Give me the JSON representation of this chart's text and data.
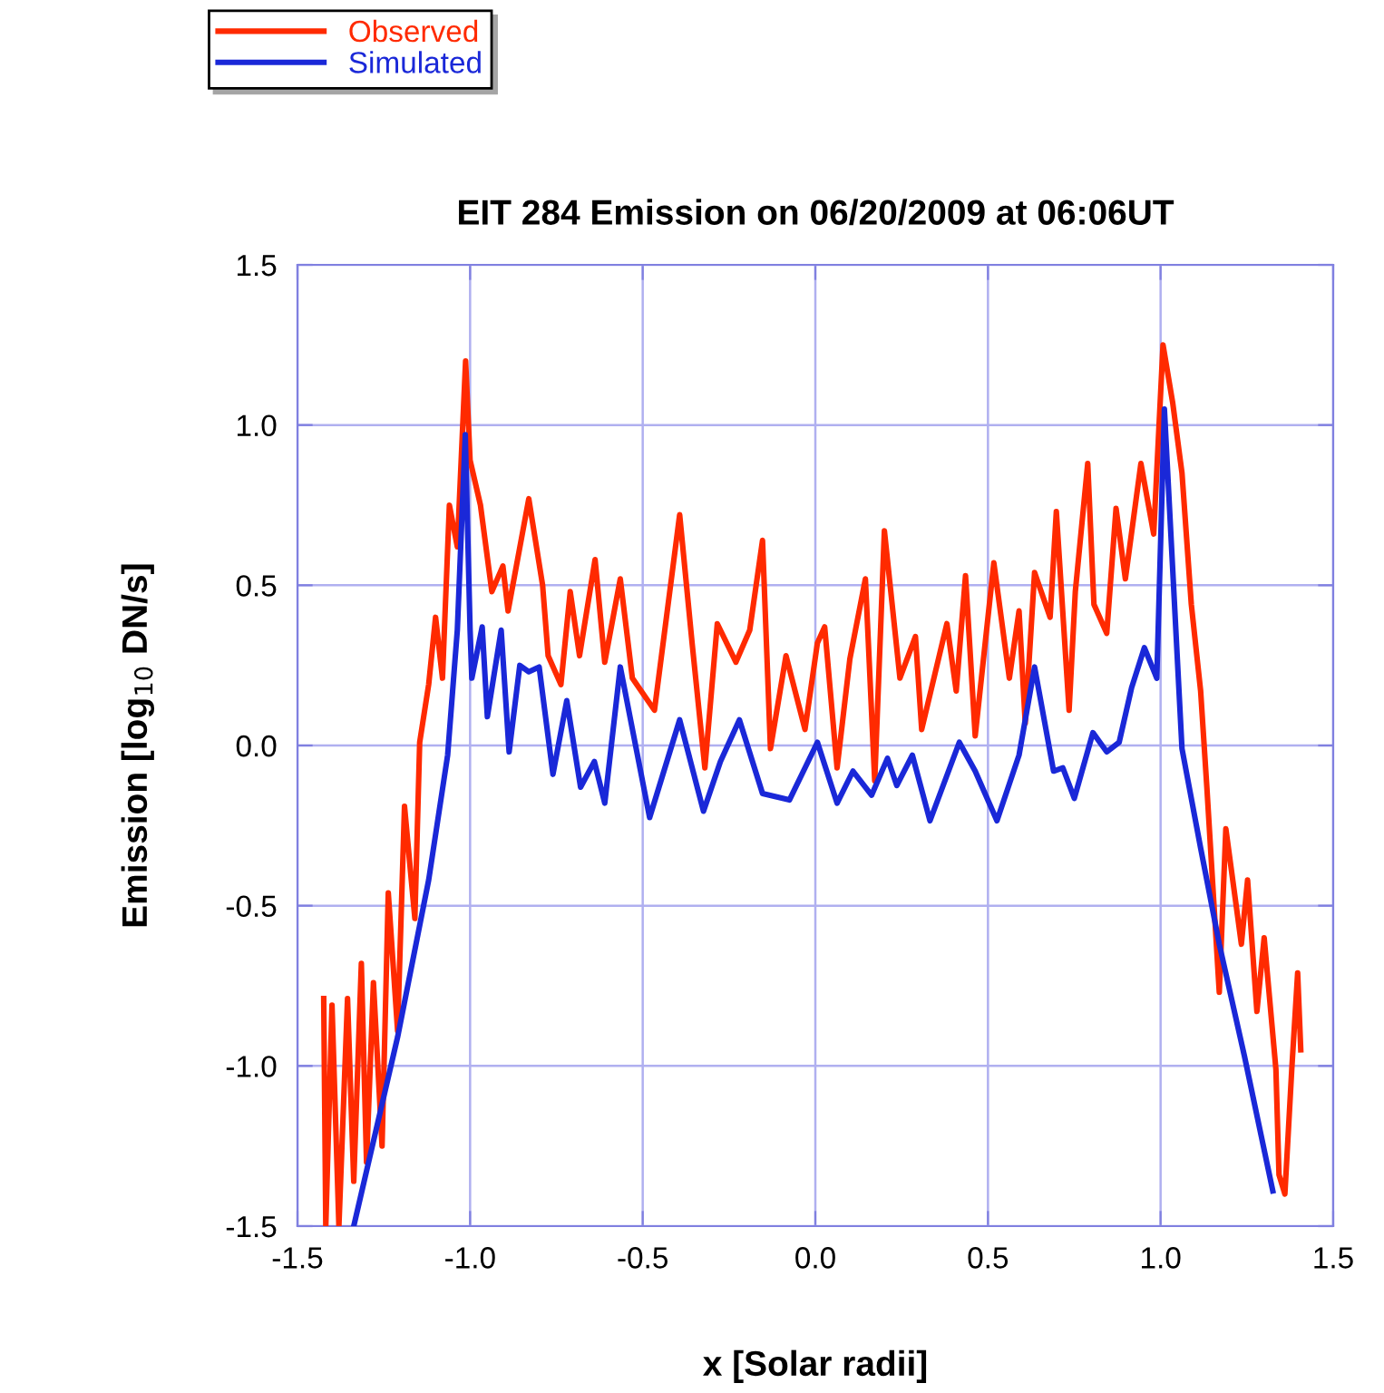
{
  "chart_data": {
    "type": "line",
    "title": "EIT 284 Emission on 06/20/2009 at 06:06UT",
    "xlabel": "x [Solar radii]",
    "ylabel": "Emission [log$_{10}$ DN/s]",
    "xlim": [
      -1.5,
      1.5
    ],
    "ylim": [
      -1.5,
      1.5
    ],
    "xticks": [
      -1.5,
      {
        "value": -1,
        "label": "-1.0"
      },
      -0.5,
      {
        "value": 0,
        "label": "0.0"
      },
      0.5,
      {
        "value": 1,
        "label": "1.0"
      },
      1.5
    ],
    "yticks": [
      -1.5,
      {
        "value": -1,
        "label": "-1.0"
      },
      -0.5,
      {
        "value": 0,
        "label": "0.0"
      },
      0.5,
      {
        "value": 1,
        "label": "1.0"
      },
      1.5
    ],
    "grid": true,
    "legend": "top left",
    "marker": "none",
    "line_style": "solid",
    "series": [
      {
        "name": "Observed",
        "color": "#ff2a00",
        "x": [
          -1.424,
          -1.418,
          -1.4,
          -1.38,
          -1.355,
          -1.337,
          -1.315,
          -1.3,
          -1.28,
          -1.255,
          -1.237,
          -1.21,
          -1.19,
          -1.16,
          -1.146,
          -1.12,
          -1.1,
          -1.08,
          -1.06,
          -1.037,
          -1.013,
          -1.0,
          -0.97,
          -0.937,
          -0.905,
          -0.89,
          -0.83,
          -0.79,
          -0.774,
          -0.737,
          -0.71,
          -0.683,
          -0.638,
          -0.61,
          -0.565,
          -0.53,
          -0.466,
          -0.393,
          -0.357,
          -0.32,
          -0.284,
          -0.23,
          -0.19,
          -0.153,
          -0.13,
          -0.085,
          -0.03,
          0.006,
          0.027,
          0.063,
          0.1,
          0.145,
          0.172,
          0.2,
          0.245,
          0.29,
          0.308,
          0.381,
          0.408,
          0.435,
          0.463,
          0.517,
          0.562,
          0.59,
          0.608,
          0.635,
          0.68,
          0.698,
          0.735,
          0.753,
          0.789,
          0.807,
          0.844,
          0.871,
          0.898,
          0.943,
          0.98,
          1.007,
          1.035,
          1.062,
          1.089,
          1.116,
          1.134,
          1.17,
          1.189,
          1.234,
          1.252,
          1.279,
          1.3,
          1.334,
          1.343,
          1.36,
          1.38,
          1.397,
          1.406
        ],
        "values": [
          -0.79,
          -1.5,
          -0.81,
          -1.5,
          -0.79,
          -1.36,
          -0.68,
          -1.3,
          -0.74,
          -1.25,
          -0.46,
          -0.89,
          -0.19,
          -0.54,
          0.01,
          0.19,
          0.4,
          0.21,
          0.75,
          0.62,
          1.2,
          0.89,
          0.75,
          0.48,
          0.56,
          0.42,
          0.77,
          0.5,
          0.28,
          0.19,
          0.48,
          0.28,
          0.58,
          0.26,
          0.52,
          0.21,
          0.11,
          0.72,
          0.32,
          -0.07,
          0.38,
          0.26,
          0.36,
          0.64,
          -0.01,
          0.28,
          0.05,
          0.32,
          0.37,
          -0.07,
          0.27,
          0.52,
          -0.11,
          0.67,
          0.21,
          0.34,
          0.05,
          0.38,
          0.17,
          0.53,
          0.03,
          0.57,
          0.21,
          0.42,
          0.07,
          0.54,
          0.4,
          0.73,
          0.11,
          0.48,
          0.88,
          0.44,
          0.35,
          0.74,
          0.52,
          0.88,
          0.66,
          1.25,
          1.07,
          0.85,
          0.44,
          0.17,
          -0.13,
          -0.77,
          -0.26,
          -0.62,
          -0.42,
          -0.83,
          -0.6,
          -1.01,
          -1.34,
          -1.4,
          -1.01,
          -0.71,
          -0.95
        ]
      },
      {
        "name": "Simulated",
        "color": "#1a28d8",
        "x": [
          -1.337,
          -1.21,
          -1.12,
          -1.065,
          -1.037,
          -1.014,
          -1.0,
          -0.995,
          -0.965,
          -0.95,
          -0.91,
          -0.887,
          -0.856,
          -0.83,
          -0.8,
          -0.76,
          -0.72,
          -0.68,
          -0.64,
          -0.61,
          -0.565,
          -0.48,
          -0.393,
          -0.324,
          -0.275,
          -0.22,
          -0.153,
          -0.075,
          0.006,
          0.063,
          0.109,
          0.163,
          0.209,
          0.236,
          0.281,
          0.332,
          0.417,
          0.463,
          0.526,
          0.59,
          0.635,
          0.69,
          0.717,
          0.75,
          0.804,
          0.844,
          0.88,
          0.916,
          0.953,
          0.989,
          1.011,
          1.062,
          1.116,
          1.17,
          1.243,
          1.325
        ],
        "values": [
          -1.5,
          -0.91,
          -0.42,
          -0.03,
          0.36,
          0.97,
          0.36,
          0.21,
          0.37,
          0.09,
          0.36,
          -0.02,
          0.25,
          0.23,
          0.245,
          -0.09,
          0.14,
          -0.13,
          -0.05,
          -0.18,
          0.245,
          -0.225,
          0.08,
          -0.205,
          -0.05,
          0.08,
          -0.15,
          -0.17,
          0.01,
          -0.18,
          -0.08,
          -0.155,
          -0.04,
          -0.125,
          -0.03,
          -0.235,
          0.01,
          -0.08,
          -0.235,
          -0.03,
          0.245,
          -0.08,
          -0.07,
          -0.165,
          0.04,
          -0.02,
          0.01,
          0.18,
          0.305,
          0.21,
          1.05,
          -0.01,
          -0.32,
          -0.62,
          -0.97,
          -1.39
        ]
      }
    ]
  }
}
